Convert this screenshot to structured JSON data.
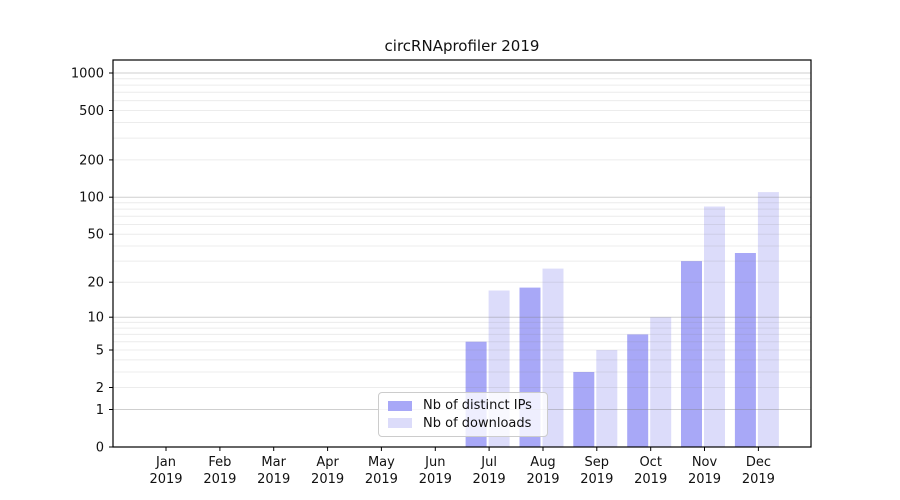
{
  "title": "circRNAprofiler 2019",
  "chart_data": {
    "type": "bar",
    "title": "circRNAprofiler 2019",
    "categories": [
      "Jan 2019",
      "Feb 2019",
      "Mar 2019",
      "Apr 2019",
      "May 2019",
      "Jun 2019",
      "Jul 2019",
      "Aug 2019",
      "Sep 2019",
      "Oct 2019",
      "Nov 2019",
      "Dec 2019"
    ],
    "series": [
      {
        "name": "Nb of distinct IPs",
        "color": "#a8a8f7",
        "values": [
          0,
          0,
          0,
          0,
          0,
          0,
          6,
          18,
          3,
          7,
          30,
          35
        ]
      },
      {
        "name": "Nb of downloads",
        "color": "#dcdcfa",
        "values": [
          0,
          0,
          0,
          0,
          0,
          0,
          17,
          26,
          5,
          10,
          84,
          110
        ]
      }
    ],
    "yscale": "log1p",
    "ylim": [
      0,
      1270
    ],
    "yticks": [
      0,
      1,
      2,
      5,
      10,
      20,
      50,
      100,
      200,
      500,
      1000
    ],
    "grid_major_at": [
      1,
      10,
      100,
      1000
    ],
    "grid_minor_multiples": [
      2,
      3,
      4,
      5,
      6,
      7,
      8,
      9
    ],
    "legend_position": "lower center",
    "colors": {
      "axis": "#000000",
      "text": "#111111",
      "grid": "#808080",
      "legend_border": "#cccccc"
    }
  },
  "legend": {
    "items": [
      {
        "label": "Nb of distinct IPs"
      },
      {
        "label": "Nb of downloads"
      }
    ]
  }
}
